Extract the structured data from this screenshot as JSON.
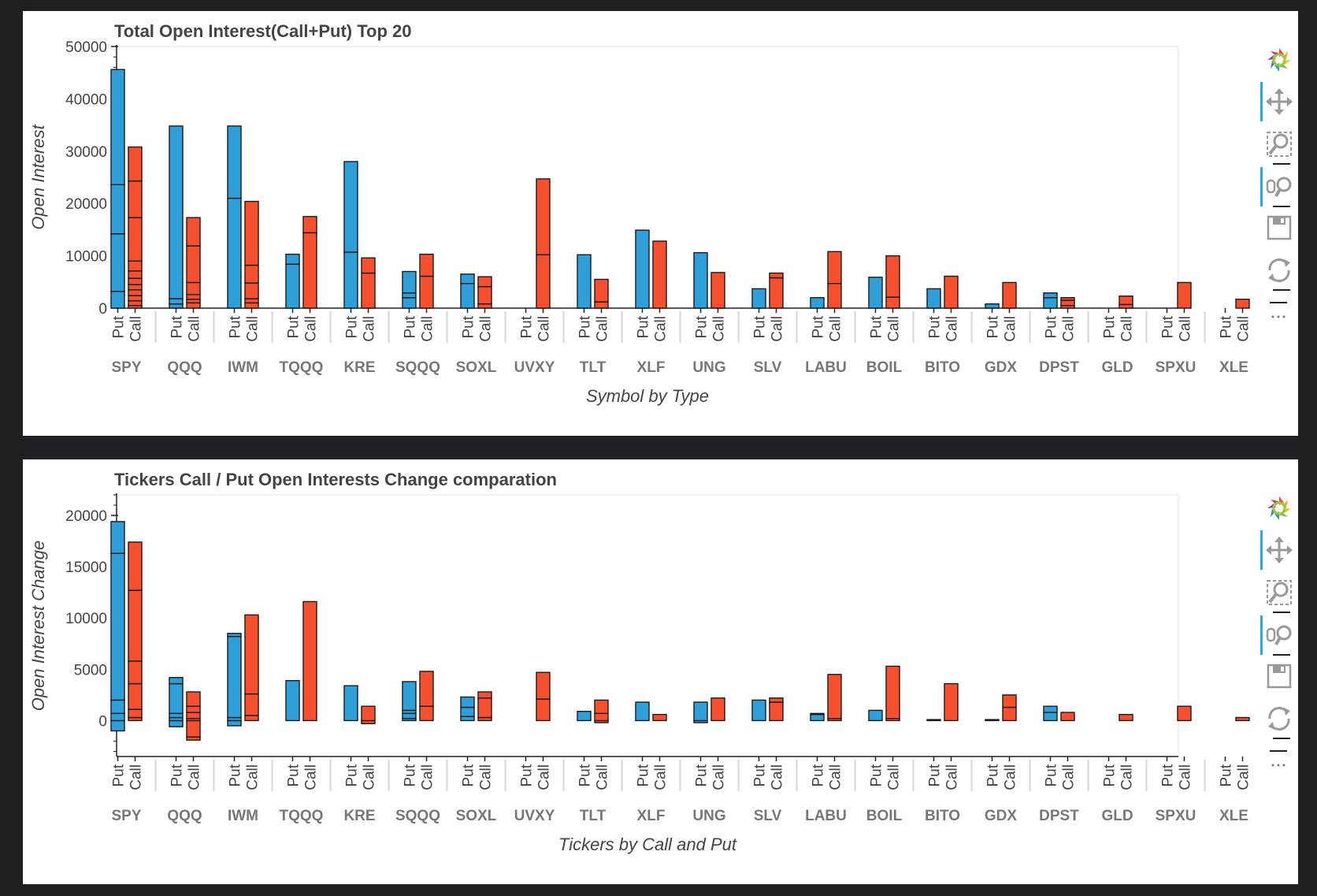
{
  "colors": {
    "put": "#2e9fd9",
    "call": "#f7502e",
    "outline": "#1a1a1a"
  },
  "toolbar": {
    "tools": [
      "bokeh-logo-icon",
      "pan-icon",
      "box-zoom-icon",
      "wheel-zoom-icon",
      "save-icon",
      "reset-icon",
      "more-icon"
    ],
    "active": [
      "pan-icon",
      "wheel-zoom-icon"
    ]
  },
  "chart_data": [
    {
      "type": "bar",
      "title": "Total Open Interest(Call+Put) Top 20",
      "xlabel": "Symbol by Type",
      "ylabel": "Open Interest",
      "ylim": [
        0,
        50000
      ],
      "yticks": [
        "0",
        "10000",
        "20000",
        "30000",
        "40000",
        "50000"
      ],
      "grid": false,
      "stacked": true,
      "categories": [
        "SPY",
        "QQQ",
        "IWM",
        "TQQQ",
        "KRE",
        "SQQQ",
        "SOXL",
        "UVXY",
        "TLT",
        "XLF",
        "UNG",
        "SLV",
        "LABU",
        "BOIL",
        "BITO",
        "GDX",
        "DPST",
        "GLD",
        "SPXU",
        "XLE"
      ],
      "subcategories": [
        "Put",
        "Call"
      ],
      "series": [
        {
          "name": "Put",
          "stacks": [
            [
              3200,
              11000,
              9400,
              22000
            ],
            [
              800,
              1000,
              33000
            ],
            [
              21000,
              13800
            ],
            [
              8400,
              1900
            ],
            [
              10700,
              17300
            ],
            [
              2000,
              900,
              4100
            ],
            [
              4700,
              1800
            ],
            [],
            [
              10200
            ],
            [
              14900
            ],
            [
              10600
            ],
            [
              3700
            ],
            [
              2000
            ],
            [
              5900
            ],
            [
              3700
            ],
            [
              800
            ],
            [
              2000,
              900
            ],
            [],
            [],
            []
          ]
        },
        {
          "name": "Call",
          "stacks": [
            [
              500,
              900,
              1000,
              1100,
              1000,
              1200,
              1400,
              1900,
              8300,
              7000,
              6500
            ],
            [
              1000,
              700,
              900,
              2300,
              7000,
              5400
            ],
            [
              1000,
              800,
              3000,
              3400,
              12200
            ],
            [
              14400,
              3100
            ],
            [
              6700,
              2900
            ],
            [
              6100,
              4200
            ],
            [
              800,
              3300,
              1900
            ],
            [
              10200,
              14500
            ],
            [
              1200,
              4300
            ],
            [
              12800
            ],
            [
              6800
            ],
            [
              5800,
              900
            ],
            [
              4700,
              6100
            ],
            [
              2100,
              7900
            ],
            [
              6100
            ],
            [
              4900
            ],
            [
              500,
              1000,
              500
            ],
            [
              700,
              1600
            ],
            [
              4900
            ],
            [
              1700
            ]
          ]
        }
      ]
    },
    {
      "type": "bar",
      "title": "Tickers Call / Put Open Interests Change comparation",
      "xlabel": "Tickers by Call and Put",
      "ylabel": "Open Interest Change",
      "ylim": [
        -3500,
        22000
      ],
      "yticks": [
        "0",
        "5000",
        "10000",
        "15000",
        "20000"
      ],
      "grid": false,
      "stacked": true,
      "categories": [
        "SPY",
        "QQQ",
        "IWM",
        "TQQQ",
        "KRE",
        "SQQQ",
        "SOXL",
        "UVXY",
        "TLT",
        "XLF",
        "UNG",
        "SLV",
        "LABU",
        "BOIL",
        "BITO",
        "GDX",
        "DPST",
        "GLD",
        "SPXU",
        "XLE"
      ],
      "subcategories": [
        "Put",
        "Call"
      ],
      "series": [
        {
          "name": "Put",
          "stacks": [
            [
              -1000,
              700,
              1300,
              14300,
              3100
            ],
            [
              -600,
              300,
              400,
              2900,
              600
            ],
            [
              -500,
              300,
              7900,
              300
            ],
            [
              3900
            ],
            [
              3400
            ],
            [
              200,
              500,
              300,
              2800
            ],
            [
              400,
              900,
              1000
            ],
            [],
            [
              900
            ],
            [
              1800
            ],
            [
              -200,
              1800
            ],
            [
              2000
            ],
            [
              600,
              100
            ],
            [
              1000
            ],
            [
              100
            ],
            [
              100
            ],
            [
              800,
              600
            ],
            [],
            [],
            []
          ]
        },
        {
          "name": "Call",
          "stacks": [
            [
              300,
              800,
              2500,
              2200,
              6900,
              4700
            ],
            [
              -1600,
              -300,
              200,
              600,
              600,
              1400
            ],
            [
              500,
              2100,
              7700
            ],
            [
              11600
            ],
            [
              -300,
              1400
            ],
            [
              1400,
              3400
            ],
            [
              300,
              1900,
              600
            ],
            [
              2100,
              2600
            ],
            [
              -200,
              700,
              1300
            ],
            [
              600
            ],
            [
              2200
            ],
            [
              1800,
              400
            ],
            [
              200,
              4300
            ],
            [
              200,
              5100
            ],
            [
              3600
            ],
            [
              1300,
              1200
            ],
            [
              800
            ],
            [
              600
            ],
            [
              1400
            ],
            [
              300
            ]
          ]
        }
      ]
    }
  ]
}
